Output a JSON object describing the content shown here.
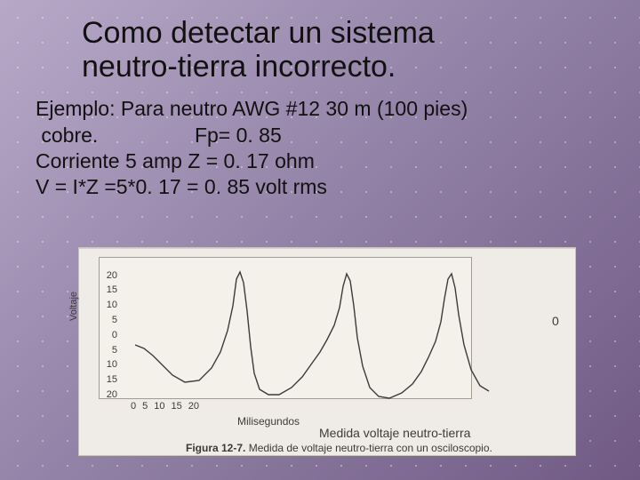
{
  "title_line1": "Como detectar un sistema",
  "title_line2": "neutro-tierra incorrecto.",
  "body": {
    "line1": "Ejemplo: Para neutro AWG  #12 30 m  (100 pies)",
    "line2": " cobre.                 Fp= 0. 85",
    "line3": "Corriente  5 amp    Z = 0. 17 ohm",
    "line4": "V = I*Z =5*0. 17 = 0. 85 volt  rms"
  },
  "figure": {
    "type": "line",
    "background_color": "#efece7",
    "chart_bg": "#f4f1eb",
    "axis_color": "#a29c94",
    "trace_color": "#3b3b39",
    "trace_width": 1.4,
    "y_label": "Voltaje",
    "y_ticks": [
      "20",
      "15",
      "10",
      "5",
      "0",
      "5",
      "10",
      "15",
      "20"
    ],
    "y_tick_positions": [
      0.06,
      0.165,
      0.27,
      0.375,
      0.48,
      0.585,
      0.69,
      0.795,
      0.9
    ],
    "x_label": "Milisegundos",
    "x_ticks": [
      "0",
      "5",
      "10",
      "15",
      "20"
    ],
    "zero_marker": "0",
    "subtitle": "Medida voltaje neutro-tierra",
    "caption_bold": "Figura 12-7.",
    "caption_rest": " Medida de voltaje neutro-tierra con un osciloscopio.",
    "trace_points": [
      [
        0,
        88
      ],
      [
        10,
        92
      ],
      [
        20,
        100
      ],
      [
        30,
        110
      ],
      [
        42,
        122
      ],
      [
        56,
        130
      ],
      [
        72,
        128
      ],
      [
        86,
        114
      ],
      [
        96,
        96
      ],
      [
        104,
        72
      ],
      [
        110,
        44
      ],
      [
        114,
        14
      ],
      [
        118,
        6
      ],
      [
        122,
        18
      ],
      [
        126,
        50
      ],
      [
        130,
        90
      ],
      [
        134,
        120
      ],
      [
        140,
        138
      ],
      [
        150,
        144
      ],
      [
        162,
        144
      ],
      [
        176,
        136
      ],
      [
        188,
        124
      ],
      [
        198,
        110
      ],
      [
        208,
        96
      ],
      [
        216,
        82
      ],
      [
        224,
        66
      ],
      [
        230,
        46
      ],
      [
        234,
        22
      ],
      [
        238,
        8
      ],
      [
        242,
        16
      ],
      [
        246,
        44
      ],
      [
        250,
        80
      ],
      [
        256,
        112
      ],
      [
        264,
        136
      ],
      [
        274,
        146
      ],
      [
        286,
        148
      ],
      [
        300,
        142
      ],
      [
        312,
        132
      ],
      [
        322,
        118
      ],
      [
        330,
        102
      ],
      [
        338,
        84
      ],
      [
        344,
        62
      ],
      [
        348,
        36
      ],
      [
        352,
        14
      ],
      [
        356,
        8
      ],
      [
        360,
        24
      ],
      [
        364,
        54
      ],
      [
        370,
        88
      ],
      [
        378,
        116
      ],
      [
        388,
        134
      ],
      [
        398,
        140
      ]
    ]
  },
  "colors": {
    "text": "#111111",
    "bg_gradient_from": "#b8a8c8",
    "bg_gradient_to": "#705a84"
  }
}
